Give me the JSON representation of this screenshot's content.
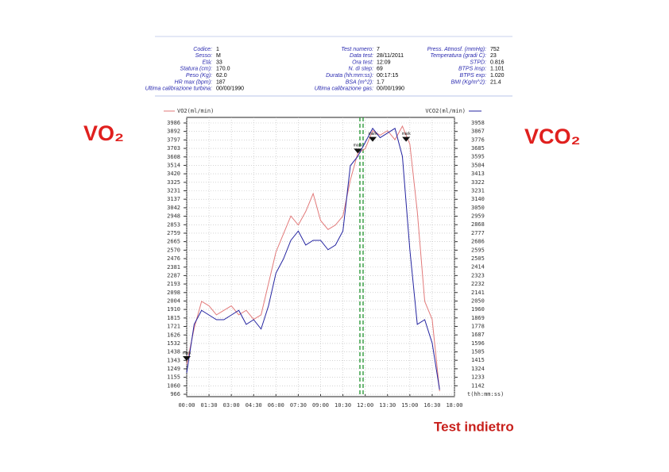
{
  "header": {
    "columns": [
      [
        [
          "Codice:",
          "1"
        ],
        [
          "Sesso:",
          "M"
        ],
        [
          "Età:",
          "33"
        ],
        [
          "Statura (cm):",
          "170.0"
        ],
        [
          "Peso (Kg):",
          "62.0"
        ],
        [
          "HR max (bpm):",
          "187"
        ],
        [
          "Ultima calibrazione turbina:",
          "00/00/1990"
        ]
      ],
      [
        [
          "Test numero:",
          "7"
        ],
        [
          "Data test:",
          "28/11/2011"
        ],
        [
          "Ora test:",
          "12:09"
        ],
        [
          "N. di step:",
          "69"
        ],
        [
          "Durata (hh:mm:ss):",
          "00:17:15"
        ],
        [
          "BSA (m^2):",
          "1.7"
        ],
        [
          "Ultima calibrazione gas:",
          "00/00/1990"
        ]
      ],
      [
        [
          "Press. Atmosf. (mmHg):",
          "752"
        ],
        [
          "Temperatura (gradi C):",
          "23"
        ],
        [
          "STPD:",
          "0.816"
        ],
        [
          "BTPS insp:",
          "1.101"
        ],
        [
          "BTPS exp:",
          "1.020"
        ],
        [
          "BMI (Kg/m^2):",
          "21.4"
        ]
      ]
    ]
  },
  "labels": {
    "left": "VO₂",
    "right": "VCO₂",
    "note": "Test indietro"
  },
  "chart_data": {
    "type": "line",
    "ylabel": "VO2(ml/min)",
    "y2label": "VCO2(ml/min)",
    "xlabel": "t(hh:mm:ss)",
    "grid": true,
    "xlim": [
      0,
      18
    ],
    "xticks": [
      {
        "value": 0,
        "label": "00:00"
      },
      {
        "value": 1.5,
        "label": "01:30"
      },
      {
        "value": 3,
        "label": "03:00"
      },
      {
        "value": 4.5,
        "label": "04:30"
      },
      {
        "value": 6,
        "label": "06:00"
      },
      {
        "value": 7.5,
        "label": "07:30"
      },
      {
        "value": 9,
        "label": "09:00"
      },
      {
        "value": 10.5,
        "label": "10:30"
      },
      {
        "value": 12,
        "label": "12:00"
      },
      {
        "value": 13.5,
        "label": "13:30"
      },
      {
        "value": 15,
        "label": "15:00"
      },
      {
        "value": 16.5,
        "label": "16:30"
      },
      {
        "value": 18,
        "label": "18:00"
      }
    ],
    "ylim": [
      966,
      3986
    ],
    "yticks": [
      966,
      1060,
      1155,
      1249,
      1343,
      1438,
      1532,
      1626,
      1721,
      1815,
      1910,
      2004,
      2098,
      2193,
      2287,
      2381,
      2476,
      2570,
      2665,
      2759,
      2853,
      2948,
      3042,
      3137,
      3231,
      3325,
      3420,
      3514,
      3608,
      3703,
      3797,
      3892,
      3986
    ],
    "y2lim": [
      1051,
      3958
    ],
    "y2ticks": [
      1142,
      1233,
      1324,
      1415,
      1505,
      1596,
      1687,
      1778,
      1869,
      1960,
      2050,
      2141,
      2232,
      2323,
      2414,
      2505,
      2595,
      2686,
      2777,
      2868,
      2959,
      3050,
      3140,
      3231,
      3322,
      3413,
      3504,
      3595,
      3685,
      3776,
      3867,
      3958
    ],
    "x": [
      0,
      0.5,
      1,
      1.5,
      2,
      2.5,
      3,
      3.5,
      4,
      4.5,
      5,
      5.5,
      6,
      6.5,
      7,
      7.5,
      8,
      8.5,
      9,
      9.5,
      10,
      10.5,
      11,
      11.5,
      12,
      12.5,
      13,
      13.5,
      14,
      14.5,
      15,
      15.5,
      16,
      16.5,
      17
    ],
    "series": [
      {
        "name": "VO2(ml/min)",
        "color": "#e27a7a",
        "values": [
          1300,
          1700,
          2000,
          1950,
          1850,
          1900,
          1950,
          1850,
          1900,
          1800,
          1850,
          2200,
          2550,
          2750,
          2950,
          2850,
          3000,
          3200,
          2900,
          2800,
          2850,
          2950,
          3350,
          3650,
          3700,
          3900,
          3850,
          3900,
          3800,
          3950,
          3750,
          3000,
          2000,
          1800,
          1000
        ]
      },
      {
        "name": "VCO2(ml/min)",
        "color": "#2424a0",
        "axis": "y2",
        "values": [
          1280,
          1800,
          1950,
          1900,
          1850,
          1850,
          1900,
          1950,
          1800,
          1850,
          1750,
          2000,
          2350,
          2500,
          2700,
          2800,
          2650,
          2700,
          2700,
          2600,
          2650,
          2800,
          3500,
          3600,
          3750,
          3900,
          3800,
          3850,
          3900,
          3600,
          2600,
          1800,
          1850,
          1600,
          1100
        ]
      }
    ],
    "vline": {
      "x": 11.75,
      "color": "#2e9a3a"
    },
    "marks": [
      {
        "x": 0,
        "y": 1390,
        "label": "mark"
      },
      {
        "x": 11.5,
        "y": 3700,
        "label": "mark"
      },
      {
        "x": 12.5,
        "y": 3830,
        "label": "mark"
      },
      {
        "x": 14.75,
        "y": 3830,
        "label": "mark"
      }
    ]
  }
}
